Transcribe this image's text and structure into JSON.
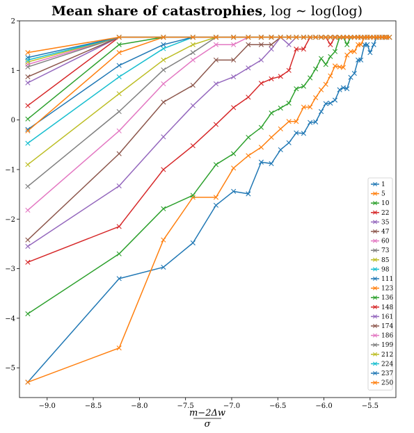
{
  "chart_data": {
    "type": "line",
    "title": {
      "bold": "Mean share of catastrophies",
      "rest": ", log ∼ log(log)"
    },
    "xlabel": {
      "numerator": "m−2Δw",
      "denominator": "σ"
    },
    "ylabel": "",
    "xlim": [
      -9.3,
      -5.22
    ],
    "ylim": [
      -5.6,
      2.0
    ],
    "x_ticks": [
      -9.0,
      -8.5,
      -8.0,
      -7.5,
      -7.0,
      -6.5,
      -6.0,
      -5.5
    ],
    "x_tick_labels": [
      "−9.0",
      "−8.5",
      "−8.0",
      "−7.5",
      "−7.0",
      "−6.5",
      "−6.0",
      "−5.5"
    ],
    "y_ticks": [
      -5,
      -4,
      -3,
      -2,
      -1,
      0,
      1,
      2
    ],
    "y_tick_labels": [
      "−5",
      "−4",
      "−3",
      "−2",
      "−1",
      "0",
      "1",
      "2"
    ],
    "marker": "x",
    "legend_position": "lower-right",
    "x": [
      -9.21,
      -8.22,
      -7.74,
      -7.42,
      -7.17,
      -6.98,
      -6.82,
      -6.68,
      -6.57,
      -6.47,
      -6.38,
      -6.3,
      -6.22,
      -6.15,
      -6.09,
      -6.03,
      -5.98,
      -5.93,
      -5.88,
      -5.83,
      -5.79,
      -5.75,
      -5.71,
      -5.67,
      -5.63,
      -5.6,
      -5.56,
      -5.53,
      -5.5,
      -5.46,
      -5.43,
      -5.4,
      -5.37,
      -5.34,
      -5.32,
      -5.29
    ],
    "series": [
      {
        "name": "1",
        "color": "#1f77b4",
        "values": [
          -5.29,
          -3.2,
          -2.97,
          -2.48,
          -1.72,
          -1.44,
          -1.49,
          -0.85,
          -0.88,
          -0.6,
          -0.46,
          -0.26,
          -0.27,
          -0.05,
          -0.04,
          0.17,
          0.33,
          0.34,
          0.4,
          0.61,
          0.65,
          0.63,
          0.86,
          0.94,
          1.21,
          1.21,
          1.52,
          1.52,
          1.36,
          1.52,
          1.67,
          1.67,
          1.67,
          1.67,
          1.67,
          1.67
        ]
      },
      {
        "name": "5",
        "color": "#ff7f0e",
        "values": [
          -5.29,
          -4.6,
          -2.42,
          -1.56,
          -1.56,
          -0.97,
          -0.72,
          -0.55,
          -0.35,
          -0.18,
          -0.03,
          -0.03,
          0.26,
          0.26,
          0.45,
          0.61,
          0.72,
          0.89,
          1.09,
          1.07,
          1.06,
          1.31,
          1.38,
          1.38,
          1.52,
          1.52,
          1.67,
          1.67,
          1.67,
          1.67,
          1.67,
          1.67,
          1.67,
          1.67,
          1.67,
          1.67
        ]
      },
      {
        "name": "10",
        "color": "#2ca02c",
        "values": [
          -3.91,
          -2.7,
          -1.79,
          -1.52,
          -0.9,
          -0.68,
          -0.35,
          -0.15,
          0.14,
          0.24,
          0.34,
          0.63,
          0.68,
          0.85,
          1.03,
          1.24,
          1.12,
          1.28,
          1.38,
          1.67,
          1.67,
          1.52,
          1.67,
          1.67,
          1.67,
          1.67,
          1.67,
          1.67,
          1.67,
          1.67,
          1.67,
          1.67,
          1.67,
          1.67,
          1.67,
          1.67
        ]
      },
      {
        "name": "22",
        "color": "#d62728",
        "values": [
          -2.87,
          -2.15,
          -1.0,
          -0.52,
          -0.09,
          0.25,
          0.46,
          0.74,
          0.83,
          0.88,
          1.0,
          1.43,
          1.43,
          1.67,
          1.67,
          1.67,
          1.67,
          1.52,
          1.67,
          1.67,
          1.67,
          1.67,
          1.67,
          1.67,
          1.67,
          1.67,
          1.67,
          1.67,
          1.67,
          1.67,
          1.67,
          1.67,
          1.67,
          1.67,
          1.67,
          1.67
        ]
      },
      {
        "name": "35",
        "color": "#9467bd",
        "values": [
          -2.55,
          -1.33,
          -0.34,
          0.29,
          0.73,
          0.87,
          1.05,
          1.21,
          1.43,
          1.67,
          1.52,
          1.67,
          1.67,
          1.67,
          1.67,
          1.67,
          1.67,
          1.67,
          1.67,
          1.67,
          1.67,
          1.67,
          1.67,
          1.67,
          1.67,
          1.67,
          1.67,
          1.67,
          1.67,
          1.67,
          1.67,
          1.67,
          1.67,
          1.67,
          1.67,
          1.67
        ]
      },
      {
        "name": "47",
        "color": "#8c564b",
        "values": [
          -2.42,
          -0.68,
          0.36,
          0.7,
          1.21,
          1.21,
          1.52,
          1.52,
          1.52,
          1.67,
          1.67,
          1.67,
          1.67,
          1.67,
          1.67,
          1.67,
          1.67,
          1.67,
          1.67,
          1.67,
          1.67,
          1.67,
          1.67,
          1.67,
          1.67,
          1.67,
          1.67,
          1.67,
          1.67,
          1.67,
          1.67,
          1.67,
          1.67,
          1.67,
          1.67,
          1.67
        ]
      },
      {
        "name": "60",
        "color": "#e377c2",
        "values": [
          -1.82,
          -0.22,
          0.73,
          1.21,
          1.52,
          1.52,
          1.67,
          1.67,
          1.67,
          1.67,
          1.67,
          1.67,
          1.67,
          1.67,
          1.67,
          1.67,
          1.67,
          1.67,
          1.67,
          1.67,
          1.67,
          1.67,
          1.67,
          1.67,
          1.67,
          1.67,
          1.67,
          1.67,
          1.67,
          1.67,
          1.67,
          1.67,
          1.67,
          1.67,
          1.67,
          1.67
        ]
      },
      {
        "name": "73",
        "color": "#7f7f7f",
        "values": [
          -1.34,
          0.17,
          1.01,
          1.36,
          1.67,
          1.67,
          1.67,
          1.67,
          1.67,
          1.67,
          1.67,
          1.67,
          1.67,
          1.67,
          1.67,
          1.67,
          1.67,
          1.67,
          1.67,
          1.67,
          1.67,
          1.67,
          1.67,
          1.67,
          1.67,
          1.67,
          1.67,
          1.67,
          1.67,
          1.67,
          1.67,
          1.67,
          1.67,
          1.67,
          1.67,
          1.67
        ]
      },
      {
        "name": "85",
        "color": "#bcbd22",
        "values": [
          -0.9,
          0.53,
          1.21,
          1.52,
          1.67,
          1.67,
          1.67,
          1.67,
          1.67,
          1.67,
          1.67,
          1.67,
          1.67,
          1.67,
          1.67,
          1.67,
          1.67,
          1.67,
          1.67,
          1.67,
          1.67,
          1.67,
          1.67,
          1.67,
          1.67,
          1.67,
          1.67,
          1.67,
          1.67,
          1.67,
          1.67,
          1.67,
          1.67,
          1.67,
          1.67,
          1.67
        ]
      },
      {
        "name": "98",
        "color": "#17becf",
        "values": [
          -0.47,
          0.87,
          1.44,
          1.67,
          1.67,
          1.67,
          1.67,
          1.67,
          1.67,
          1.67,
          1.67,
          1.67,
          1.67,
          1.67,
          1.67,
          1.67,
          1.67,
          1.67,
          1.67,
          1.67,
          1.67,
          1.67,
          1.67,
          1.67,
          1.67,
          1.67,
          1.67,
          1.67,
          1.67,
          1.67,
          1.67,
          1.67,
          1.67,
          1.67,
          1.67,
          1.67
        ]
      },
      {
        "name": "111",
        "color": "#1f77b4",
        "values": [
          -0.19,
          1.1,
          1.52,
          1.67,
          1.67,
          1.67,
          1.67,
          1.67,
          1.67,
          1.67,
          1.67,
          1.67,
          1.67,
          1.67,
          1.67,
          1.67,
          1.67,
          1.67,
          1.67,
          1.67,
          1.67,
          1.67,
          1.67,
          1.67,
          1.67,
          1.67,
          1.67,
          1.67,
          1.67,
          1.67,
          1.67,
          1.67,
          1.67,
          1.67,
          1.67,
          1.67
        ]
      },
      {
        "name": "123",
        "color": "#ff7f0e",
        "values": [
          -0.22,
          1.36,
          1.67,
          1.67,
          1.67,
          1.67,
          1.67,
          1.67,
          1.67,
          1.67,
          1.67,
          1.67,
          1.67,
          1.67,
          1.67,
          1.67,
          1.67,
          1.67,
          1.67,
          1.67,
          1.67,
          1.67,
          1.67,
          1.67,
          1.67,
          1.67,
          1.67,
          1.67,
          1.67,
          1.67,
          1.67,
          1.67,
          1.67,
          1.67,
          1.67,
          1.67
        ]
      },
      {
        "name": "136",
        "color": "#2ca02c",
        "values": [
          0.02,
          1.52,
          1.67,
          1.67,
          1.67,
          1.67,
          1.67,
          1.67,
          1.67,
          1.67,
          1.67,
          1.67,
          1.67,
          1.67,
          1.67,
          1.67,
          1.67,
          1.67,
          1.67,
          1.67,
          1.67,
          1.67,
          1.67,
          1.67,
          1.67,
          1.67,
          1.67,
          1.67,
          1.67,
          1.67,
          1.67,
          1.67,
          1.67,
          1.67,
          1.67,
          1.67
        ]
      },
      {
        "name": "148",
        "color": "#d62728",
        "values": [
          0.29,
          1.67,
          1.67,
          1.67,
          1.67,
          1.67,
          1.67,
          1.67,
          1.67,
          1.67,
          1.67,
          1.67,
          1.67,
          1.67,
          1.67,
          1.67,
          1.67,
          1.67,
          1.67,
          1.67,
          1.67,
          1.67,
          1.67,
          1.67,
          1.67,
          1.67,
          1.67,
          1.67,
          1.67,
          1.67,
          1.67,
          1.67,
          1.67,
          1.67,
          1.67,
          1.67
        ]
      },
      {
        "name": "161",
        "color": "#9467bd",
        "values": [
          0.75,
          1.67,
          1.67,
          1.67,
          1.67,
          1.67,
          1.67,
          1.67,
          1.67,
          1.67,
          1.67,
          1.67,
          1.67,
          1.67,
          1.67,
          1.67,
          1.67,
          1.67,
          1.67,
          1.67,
          1.67,
          1.67,
          1.67,
          1.67,
          1.67,
          1.67,
          1.67,
          1.67,
          1.67,
          1.67,
          1.67,
          1.67,
          1.67,
          1.67,
          1.67,
          1.67
        ]
      },
      {
        "name": "174",
        "color": "#8c564b",
        "values": [
          0.87,
          1.67,
          1.67,
          1.67,
          1.67,
          1.67,
          1.67,
          1.67,
          1.67,
          1.67,
          1.67,
          1.67,
          1.67,
          1.67,
          1.67,
          1.67,
          1.67,
          1.67,
          1.67,
          1.67,
          1.67,
          1.67,
          1.67,
          1.67,
          1.67,
          1.67,
          1.67,
          1.67,
          1.67,
          1.67,
          1.67,
          1.67,
          1.67,
          1.67,
          1.67,
          1.67
        ]
      },
      {
        "name": "186",
        "color": "#e377c2",
        "values": [
          1.12,
          1.67,
          1.67,
          1.67,
          1.67,
          1.67,
          1.67,
          1.67,
          1.67,
          1.67,
          1.67,
          1.67,
          1.67,
          1.67,
          1.67,
          1.67,
          1.67,
          1.67,
          1.67,
          1.67,
          1.67,
          1.67,
          1.67,
          1.67,
          1.67,
          1.67,
          1.67,
          1.67,
          1.67,
          1.67,
          1.67,
          1.67,
          1.67,
          1.67,
          1.67,
          1.67
        ]
      },
      {
        "name": "199",
        "color": "#7f7f7f",
        "values": [
          1.07,
          1.67,
          1.67,
          1.67,
          1.67,
          1.67,
          1.67,
          1.67,
          1.67,
          1.67,
          1.67,
          1.67,
          1.67,
          1.67,
          1.67,
          1.67,
          1.67,
          1.67,
          1.67,
          1.67,
          1.67,
          1.67,
          1.67,
          1.67,
          1.67,
          1.67,
          1.67,
          1.67,
          1.67,
          1.67,
          1.67,
          1.67,
          1.67,
          1.67,
          1.67,
          1.67
        ]
      },
      {
        "name": "212",
        "color": "#bcbd22",
        "values": [
          1.17,
          1.67,
          1.67,
          1.67,
          1.67,
          1.67,
          1.67,
          1.67,
          1.67,
          1.67,
          1.67,
          1.67,
          1.67,
          1.67,
          1.67,
          1.67,
          1.67,
          1.67,
          1.67,
          1.67,
          1.67,
          1.67,
          1.67,
          1.67,
          1.67,
          1.67,
          1.67,
          1.67,
          1.67,
          1.67,
          1.67,
          1.67,
          1.67,
          1.67,
          1.67,
          1.67
        ]
      },
      {
        "name": "224",
        "color": "#17becf",
        "values": [
          1.21,
          1.67,
          1.67,
          1.67,
          1.67,
          1.67,
          1.67,
          1.67,
          1.67,
          1.67,
          1.67,
          1.67,
          1.67,
          1.67,
          1.67,
          1.67,
          1.67,
          1.67,
          1.67,
          1.67,
          1.67,
          1.67,
          1.67,
          1.67,
          1.67,
          1.67,
          1.67,
          1.67,
          1.67,
          1.67,
          1.67,
          1.67,
          1.67,
          1.67,
          1.67,
          1.67
        ]
      },
      {
        "name": "237",
        "color": "#1f77b4",
        "values": [
          1.26,
          1.67,
          1.67,
          1.67,
          1.67,
          1.67,
          1.67,
          1.67,
          1.67,
          1.67,
          1.67,
          1.67,
          1.67,
          1.67,
          1.67,
          1.67,
          1.67,
          1.67,
          1.67,
          1.67,
          1.67,
          1.67,
          1.67,
          1.67,
          1.67,
          1.67,
          1.67,
          1.67,
          1.67,
          1.67,
          1.67,
          1.67,
          1.67,
          1.67,
          1.67,
          1.67
        ]
      },
      {
        "name": "250",
        "color": "#ff7f0e",
        "values": [
          1.36,
          1.67,
          1.67,
          1.67,
          1.67,
          1.67,
          1.67,
          1.67,
          1.67,
          1.67,
          1.67,
          1.67,
          1.67,
          1.67,
          1.67,
          1.67,
          1.67,
          1.67,
          1.67,
          1.67,
          1.67,
          1.67,
          1.67,
          1.67,
          1.67,
          1.67,
          1.67,
          1.67,
          1.67,
          1.67,
          1.67,
          1.67,
          1.67,
          1.67,
          1.67,
          1.67
        ]
      }
    ]
  }
}
